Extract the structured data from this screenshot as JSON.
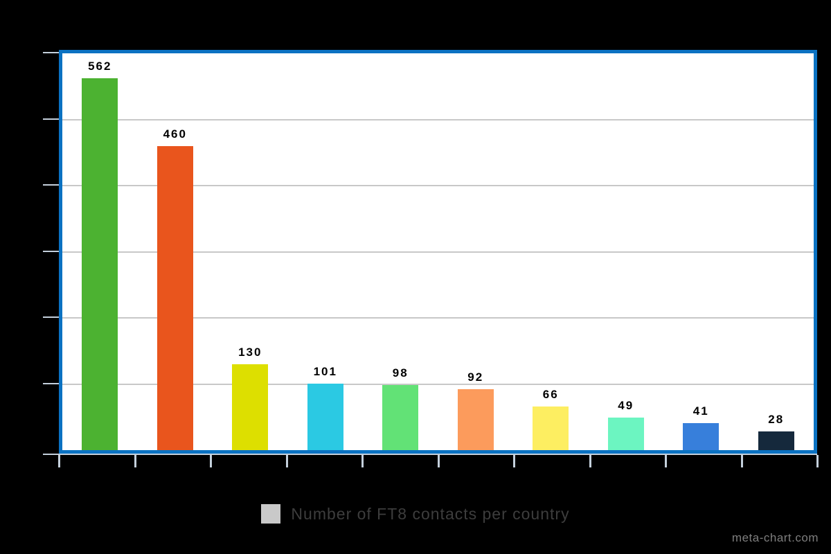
{
  "chart_data": {
    "type": "bar",
    "values": [
      562,
      460,
      130,
      101,
      98,
      92,
      66,
      49,
      41,
      28
    ],
    "data_labels": [
      "562",
      "460",
      "130",
      "101",
      "98",
      "92",
      "66",
      "49",
      "41",
      "28"
    ],
    "bar_colors": [
      "#4cb231",
      "#e9551d",
      "#dddf00",
      "#2bc9e3",
      "#62e276",
      "#fc9b5c",
      "#fdee61",
      "#6cf5c1",
      "#377fdb",
      "#15293c"
    ],
    "ylim": [
      0,
      600
    ],
    "y_gridline_interval": 100,
    "grid": true,
    "axis_tick_labels_visible": false,
    "x_tick_count": 11,
    "legend_position": "bottom-center",
    "title": "",
    "xlabel": "",
    "ylabel": ""
  },
  "legend": {
    "label": "Number of FT8 contacts per country",
    "swatch_color": "#c9c9c9"
  },
  "watermark": {
    "text": "meta-chart.com"
  },
  "colors": {
    "page_background": "#000000",
    "plot_background": "#ffffff",
    "plot_border": "#0b72c2",
    "gridline": "#c8c8c8",
    "tick": "#c4d0dc",
    "data_label": "#000000",
    "legend_text": "#3d3d3d",
    "watermark_text": "#7e7e7e"
  }
}
